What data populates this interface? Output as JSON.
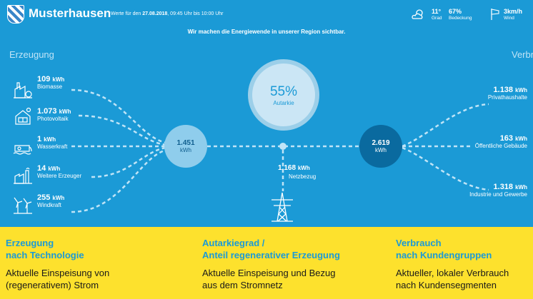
{
  "header": {
    "town": "Musterhausen",
    "period_prefix": "Werte für den",
    "period_date": "27.08.2018",
    "period_rest": ", 09:45 Uhr bis 10:00 Uhr",
    "tagline": "Wir machen die Energiewende in unserer Region sichtbar.",
    "weather": {
      "temp": "11°",
      "temp_label": "Grad",
      "cloud": "67%",
      "cloud_label": "Bedeckung",
      "wind": "3km/h",
      "wind_label": "Wind"
    }
  },
  "sections": {
    "left": "Erzeugung",
    "right": "Verbrauch"
  },
  "producers": [
    {
      "value": "109",
      "unit": "kWh",
      "label": "Biomasse",
      "icon": "factory-icon"
    },
    {
      "value": "1.073",
      "unit": "kWh",
      "label": "Photovoltaik",
      "icon": "solar-house-icon"
    },
    {
      "value": "1",
      "unit": "kWh",
      "label": "Wasserkraft",
      "icon": "water-plant-icon"
    },
    {
      "value": "14",
      "unit": "kWh",
      "label": "Weitere Erzeuger",
      "icon": "plant-icon"
    },
    {
      "value": "255",
      "unit": "kWh",
      "label": "Windkraft",
      "icon": "wind-turbine-icon"
    }
  ],
  "autarkie": {
    "value": "55%",
    "label": "Autarkie"
  },
  "generation_total": {
    "value": "1.451",
    "unit": "kWh"
  },
  "consumption_total": {
    "value": "2.619",
    "unit": "kWh"
  },
  "grid": {
    "value": "1.168",
    "unit": "kWh",
    "label": "Netzbezug"
  },
  "consumers": [
    {
      "value": "1.138",
      "unit": "kWh",
      "label": "Privathaushalte"
    },
    {
      "value": "163",
      "unit": "kWh",
      "label": "Öffentliche Gebäude"
    },
    {
      "value": "1.318",
      "unit": "kWh",
      "label": "Industrie und Gewerbe"
    }
  ],
  "footer": [
    {
      "title1": "Erzeugung",
      "title2": "nach Technologie",
      "text1": "Aktuelle Einspeisung von",
      "text2": "(regenerativem) Strom"
    },
    {
      "title1": "Autarkiegrad /",
      "title2": "Anteil regenerativer Erzeugung",
      "text1": "Aktuelle Einspeisung und Bezug",
      "text2": "aus dem Stromnetz"
    },
    {
      "title1": "Verbrauch",
      "title2": "nach Kundengruppen",
      "text1": "Aktueller, lokaler Verbrauch",
      "text2": "nach Kundensegmenten"
    }
  ],
  "colors": {
    "panel": "#1b9ad6",
    "footer": "#fde12d",
    "heading": "#1b9ad6"
  }
}
